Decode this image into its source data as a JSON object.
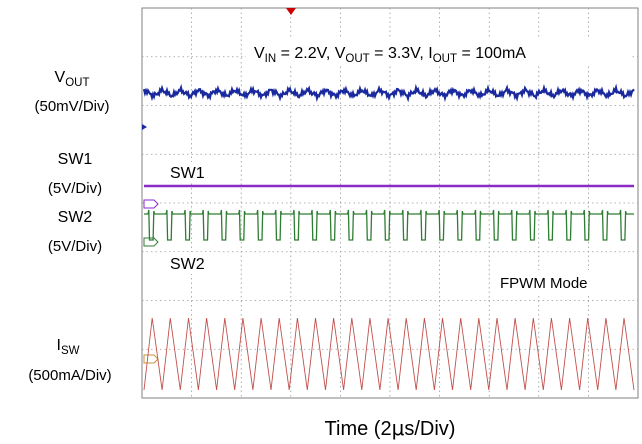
{
  "chart_data": {
    "type": "line",
    "title": "",
    "conditions": {
      "vin": {
        "symbol": "V",
        "sub": "IN",
        "value": "2.2V"
      },
      "vout": {
        "symbol": "V",
        "sub": "OUT",
        "value": "3.3V"
      },
      "iout": {
        "symbol": "I",
        "sub": "OUT",
        "value": "100mA"
      }
    },
    "mode": "FPWM Mode",
    "xlabel": {
      "pre": "Time (2",
      "micro": "μ",
      "post": "s/Div)"
    },
    "grid": true,
    "x_divisions": 10,
    "y_divisions": 8,
    "channels": [
      {
        "id": "vout",
        "symbol": "V",
        "sub": "OUT",
        "scale": "(50mV/Div)",
        "color": "#1a2a9e",
        "waveform": "ripple",
        "cycles": 27
      },
      {
        "id": "sw1",
        "name": "SW1",
        "scale": "(5V/Div)",
        "trace_label": "SW1",
        "trace_label_color": "#e020e0",
        "color": "#8a2bc8",
        "waveform": "flat"
      },
      {
        "id": "sw2",
        "name": "SW2",
        "scale": "(5V/Div)",
        "trace_label": "SW2",
        "trace_label_color": "#1f7a1f",
        "color": "#2e7d32",
        "waveform": "square",
        "cycles": 27
      },
      {
        "id": "isw",
        "symbol": "I",
        "sub": "SW",
        "scale": "(500mA/Div)",
        "color": "#c0504d",
        "waveform": "triangle",
        "cycles": 27
      }
    ]
  }
}
